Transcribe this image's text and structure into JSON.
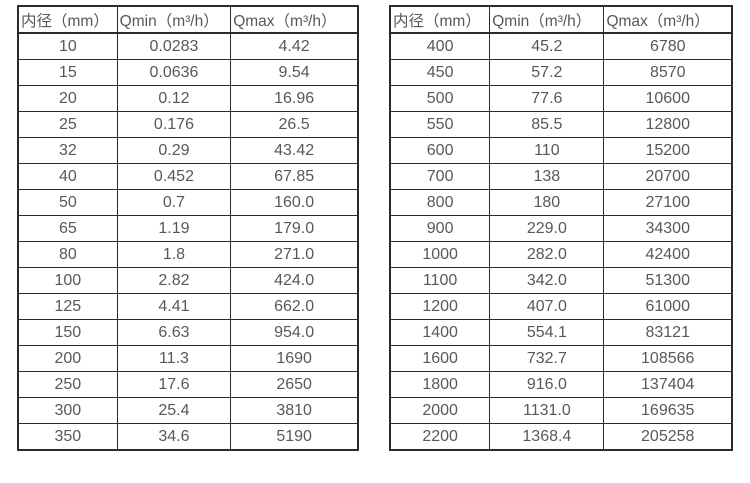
{
  "page": {
    "background": "#ffffff",
    "text_color": "#58585a",
    "border_color": "#2b2b2b"
  },
  "tables": [
    {
      "name": "flow-table-small-diameters",
      "headers": [
        "内径（mm）",
        "Qmin（m³/h）",
        "Qmax（m³/h）"
      ],
      "rows": [
        [
          "10",
          "0.0283",
          "4.42"
        ],
        [
          "15",
          "0.0636",
          "9.54"
        ],
        [
          "20",
          "0.12",
          "16.96"
        ],
        [
          "25",
          "0.176",
          "26.5"
        ],
        [
          "32",
          "0.29",
          "43.42"
        ],
        [
          "40",
          "0.452",
          "67.85"
        ],
        [
          "50",
          "0.7",
          "160.0"
        ],
        [
          "65",
          "1.19",
          "179.0"
        ],
        [
          "80",
          "1.8",
          "271.0"
        ],
        [
          "100",
          "2.82",
          "424.0"
        ],
        [
          "125",
          "4.41",
          "662.0"
        ],
        [
          "150",
          "6.63",
          "954.0"
        ],
        [
          "200",
          "11.3",
          "1690"
        ],
        [
          "250",
          "17.6",
          "2650"
        ],
        [
          "300",
          "25.4",
          "3810"
        ],
        [
          "350",
          "34.6",
          "5190"
        ]
      ]
    },
    {
      "name": "flow-table-large-diameters",
      "headers": [
        "内径（mm）",
        "Qmin（m³/h）",
        "Qmax（m³/h）"
      ],
      "rows": [
        [
          "400",
          "45.2",
          "6780"
        ],
        [
          "450",
          "57.2",
          "8570"
        ],
        [
          "500",
          "77.6",
          "10600"
        ],
        [
          "550",
          "85.5",
          "12800"
        ],
        [
          "600",
          "110",
          "15200"
        ],
        [
          "700",
          "138",
          "20700"
        ],
        [
          "800",
          "180",
          "27100"
        ],
        [
          "900",
          "229.0",
          "34300"
        ],
        [
          "1000",
          "282.0",
          "42400"
        ],
        [
          "1100",
          "342.0",
          "51300"
        ],
        [
          "1200",
          "407.0",
          "61000"
        ],
        [
          "1400",
          "554.1",
          "83121"
        ],
        [
          "1600",
          "732.7",
          "108566"
        ],
        [
          "1800",
          "916.0",
          "137404"
        ],
        [
          "2000",
          "1131.0",
          "169635"
        ],
        [
          "2200",
          "1368.4",
          "205258"
        ]
      ]
    }
  ]
}
